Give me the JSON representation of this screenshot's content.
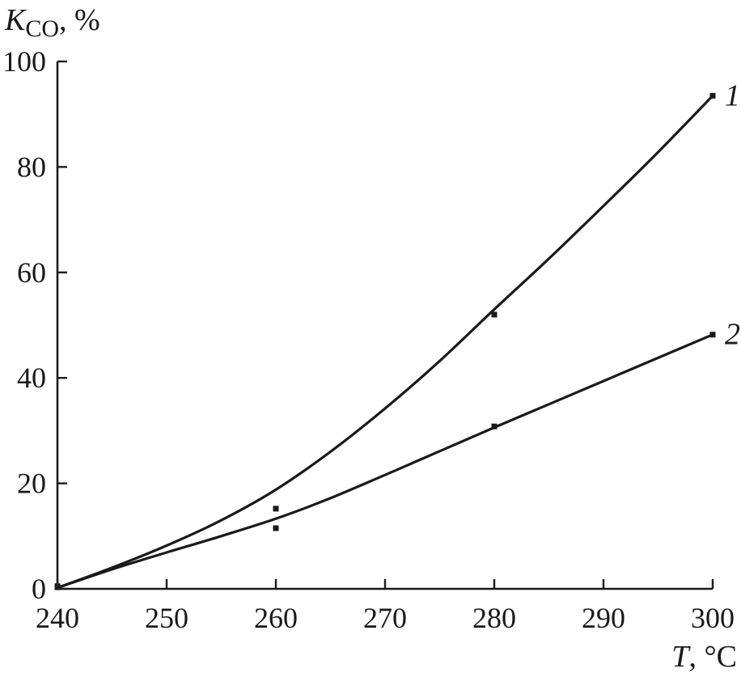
{
  "chart_data": {
    "type": "line",
    "ylabel": {
      "symbol": "K",
      "subscript": "CO",
      "suffix": ", %"
    },
    "xlabel": {
      "symbol": "T",
      "suffix": ", °C"
    },
    "xlim": [
      240,
      300
    ],
    "ylim": [
      0,
      100
    ],
    "x_ticks": [
      "240",
      "250",
      "260",
      "270",
      "280",
      "290",
      "300"
    ],
    "y_ticks": [
      "0",
      "20",
      "40",
      "60",
      "80",
      "100"
    ],
    "series": [
      {
        "name": "1",
        "points": [
          [
            240,
            0.5
          ],
          [
            260,
            15.2
          ],
          [
            280,
            52
          ],
          [
            300,
            93.5
          ]
        ],
        "curve": [
          [
            240,
            0.2
          ],
          [
            245,
            4.0
          ],
          [
            250,
            8.2
          ],
          [
            255,
            13.0
          ],
          [
            260,
            18.8
          ],
          [
            265,
            26.0
          ],
          [
            270,
            34.2
          ],
          [
            275,
            43.2
          ],
          [
            280,
            53.0
          ],
          [
            285,
            62.6
          ],
          [
            290,
            72.6
          ],
          [
            295,
            82.8
          ],
          [
            300,
            93.5
          ]
        ]
      },
      {
        "name": "2",
        "points": [
          [
            240,
            0.3
          ],
          [
            260,
            11.5
          ],
          [
            280,
            30.8
          ],
          [
            300,
            48.2
          ]
        ],
        "curve": [
          [
            240,
            0.2
          ],
          [
            245,
            3.7
          ],
          [
            250,
            6.9
          ],
          [
            255,
            10.0
          ],
          [
            260,
            13.3
          ],
          [
            265,
            17.2
          ],
          [
            270,
            21.6
          ],
          [
            275,
            26.1
          ],
          [
            280,
            30.6
          ],
          [
            285,
            35.0
          ],
          [
            290,
            39.4
          ],
          [
            295,
            43.8
          ],
          [
            300,
            48.2
          ]
        ]
      }
    ]
  }
}
